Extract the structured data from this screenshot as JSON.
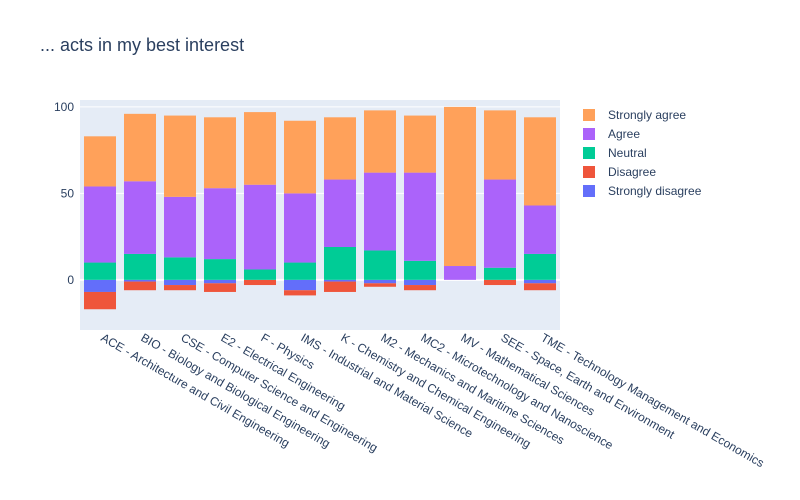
{
  "chart_data": {
    "type": "bar",
    "barmode": "relative",
    "title": "... acts in my best interest",
    "categories": [
      "ACE - Architecture and Civil Engineering",
      "BIO - Biology and Biological Engineering",
      "CSE - Computer Science and Engineering",
      "E2 - Electrical Engineering",
      "F - Physics",
      "IMS - Industrial and Material Science",
      "K - Chemistry and Chemical Engineering",
      "M2 - Mechanics and Maritime Sciences",
      "MC2 - Microtechnology and Nanoscience",
      "MV - Mathematical Sciences",
      "SEE - Space, Earth and Environment",
      "TME - Technology Management and Economics"
    ],
    "series": [
      {
        "name": "Strongly disagree",
        "color": "#636efa",
        "values": [
          -7,
          -1,
          -3,
          -2,
          0,
          -6,
          -1,
          -2,
          -3,
          0,
          0,
          -2
        ]
      },
      {
        "name": "Disagree",
        "color": "#ef553b",
        "values": [
          -10,
          -5,
          -3,
          -5,
          -3,
          -3,
          -6,
          -2,
          -3,
          0,
          -3,
          -4
        ]
      },
      {
        "name": "Neutral",
        "color": "#00cc96",
        "values": [
          10,
          15,
          13,
          12,
          6,
          10,
          19,
          17,
          11,
          0,
          7,
          15
        ]
      },
      {
        "name": "Agree",
        "color": "#ab63fa",
        "values": [
          44,
          42,
          35,
          41,
          49,
          40,
          39,
          45,
          51,
          8,
          51,
          28
        ]
      },
      {
        "name": "Strongly agree",
        "color": "#ffa15a",
        "values": [
          29,
          39,
          47,
          41,
          42,
          42,
          36,
          36,
          33,
          92,
          40,
          51
        ]
      }
    ],
    "legend_order": [
      "Strongly agree",
      "Agree",
      "Neutral",
      "Disagree",
      "Strongly disagree"
    ],
    "yticks": [
      0,
      50,
      100
    ],
    "ylim": [
      -29,
      104
    ],
    "grid": true,
    "legend_position": "right"
  }
}
